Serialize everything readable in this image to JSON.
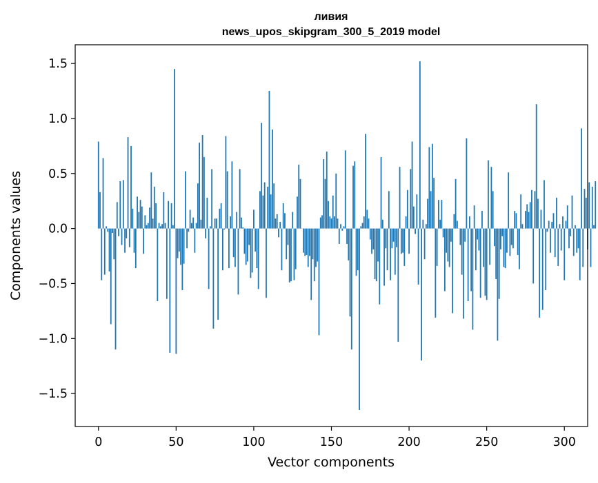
{
  "chart_data": {
    "type": "bar",
    "title_lines": [
      "ливия",
      "news_upos_skipgram_300_5_2019 model"
    ],
    "xlabel": "Vector components",
    "ylabel": "Components values",
    "xlim": [
      -15,
      315
    ],
    "ylim": [
      -1.8,
      1.67
    ],
    "xticks": [
      0,
      50,
      100,
      150,
      200,
      250,
      300
    ],
    "xtick_labels": [
      "0",
      "50",
      "100",
      "150",
      "200",
      "250",
      "300"
    ],
    "yticks": [
      -1.5,
      -1.0,
      -0.5,
      0.0,
      0.5,
      1.0,
      1.5
    ],
    "ytick_labels": [
      "−1.5",
      "−1.0",
      "−0.5",
      "0.0",
      "0.5",
      "1.0",
      "1.5"
    ],
    "bar_color": "#1f77b4",
    "grid": false,
    "series": [
      {
        "name": "ливия",
        "values": [
          0.79,
          0.33,
          -0.47,
          0.64,
          -0.42,
          0.02,
          -0.03,
          -0.39,
          -0.87,
          -0.04,
          -0.28,
          -1.1,
          0.24,
          -0.07,
          0.43,
          -0.15,
          0.44,
          -0.22,
          -0.09,
          0.83,
          -0.17,
          0.75,
          0.18,
          -0.22,
          -0.36,
          0.29,
          0.15,
          0.26,
          0.2,
          -0.23,
          0.12,
          0.03,
          0.05,
          0.19,
          0.51,
          0.09,
          0.38,
          0.23,
          -0.66,
          0.05,
          0.02,
          0.04,
          0.33,
          0.05,
          -0.64,
          0.25,
          -1.13,
          0.23,
          0.03,
          1.45,
          -1.14,
          -0.27,
          -0.21,
          -0.33,
          -0.56,
          -0.32,
          0.52,
          -0.18,
          -0.03,
          0.17,
          0.05,
          0.1,
          -0.22,
          0.05,
          0.41,
          0.78,
          0.08,
          0.85,
          0.65,
          -0.09,
          0.28,
          -0.55,
          0.02,
          0.54,
          -0.91,
          0.09,
          0.09,
          -0.83,
          0.18,
          0.23,
          -0.38,
          -0.01,
          0.84,
          0.52,
          -0.36,
          0.11,
          0.61,
          -0.26,
          -0.35,
          0.15,
          -0.6,
          0.54,
          0.1,
          0.01,
          -0.23,
          -0.33,
          -0.3,
          -0.15,
          -0.45,
          -0.4,
          0.17,
          -0.21,
          -0.36,
          -0.55,
          0.34,
          0.96,
          0.3,
          0.42,
          -0.63,
          0.38,
          1.25,
          0.31,
          0.9,
          0.41,
          0.09,
          0.13,
          -0.08,
          0.06,
          -0.38,
          0.23,
          0.14,
          -0.28,
          -0.15,
          -0.49,
          -0.48,
          0.15,
          -0.47,
          -0.37,
          0.29,
          0.58,
          0.45,
          0.0,
          -0.22,
          -0.25,
          -0.24,
          -0.35,
          -0.25,
          -0.65,
          -0.28,
          -0.48,
          -0.35,
          -0.3,
          -0.97,
          0.1,
          0.12,
          0.63,
          0.45,
          0.7,
          0.25,
          0.11,
          0.09,
          0.3,
          0.11,
          0.5,
          0.09,
          -0.14,
          0.04,
          -0.02,
          0.02,
          0.71,
          -0.14,
          -0.29,
          -0.8,
          -1.1,
          0.57,
          0.61,
          -0.43,
          -0.38,
          -1.65,
          0.02,
          0.05,
          0.11,
          0.86,
          0.17,
          0.09,
          -0.1,
          -0.23,
          -0.19,
          -0.46,
          -0.48,
          -0.3,
          -0.69,
          0.65,
          0.08,
          -0.52,
          -0.18,
          -0.38,
          0.34,
          -0.47,
          -0.18,
          -0.12,
          -0.42,
          -0.17,
          -1.03,
          0.56,
          -0.23,
          -0.22,
          -0.34,
          0.11,
          0.35,
          -0.23,
          0.54,
          0.79,
          0.2,
          -0.05,
          0.31,
          -0.51,
          1.52,
          -1.2,
          0.08,
          -0.28,
          0.04,
          0.27,
          0.74,
          0.34,
          0.77,
          0.46,
          -0.81,
          -0.34,
          0.26,
          0.08,
          0.26,
          -0.08,
          -0.57,
          -0.22,
          -0.3,
          -0.35,
          -0.12,
          -0.77,
          0.13,
          0.45,
          0.07,
          0.0,
          -0.15,
          -0.42,
          -0.82,
          -0.12,
          0.82,
          -0.66,
          0.11,
          -0.57,
          -0.92,
          0.21,
          -0.38,
          -0.1,
          -0.2,
          -0.63,
          0.16,
          -0.35,
          -0.61,
          -0.65,
          0.62,
          -0.33,
          0.56,
          0.34,
          -0.16,
          -0.46,
          -1.02,
          -0.64,
          -0.19,
          -0.07,
          -0.35,
          -0.36,
          -0.22,
          0.51,
          -0.25,
          -0.15,
          -0.18,
          0.16,
          0.14,
          -0.24,
          -0.37,
          0.31,
          0.04,
          0.0,
          0.16,
          0.22,
          0.15,
          0.24,
          0.35,
          -0.5,
          0.34,
          1.13,
          0.27,
          -0.81,
          0.17,
          -0.74,
          0.44,
          -0.56,
          -0.03,
          0.07,
          -0.22,
          0.06,
          0.14,
          -0.26,
          0.28,
          -0.34,
          0.04,
          -0.2,
          0.11,
          -0.47,
          0.07,
          0.21,
          -0.18,
          -0.07,
          0.3,
          -0.25,
          0.03,
          -0.22,
          -0.18,
          -0.47,
          0.91,
          -0.35,
          0.36,
          0.28,
          -0.19,
          0.42,
          -0.35,
          0.38,
          0.03,
          0.43
        ]
      }
    ]
  }
}
